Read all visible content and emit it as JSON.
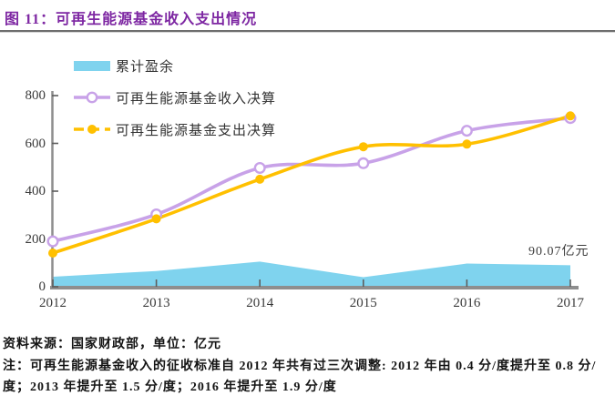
{
  "title": "图 11：可再生能源基金收入支出情况",
  "chart_data": {
    "type": "line",
    "subtype": "two smoothed lines with markers over a filled area series",
    "unit": "亿元",
    "categories": [
      "2012",
      "2013",
      "2014",
      "2015",
      "2016",
      "2017"
    ],
    "series": [
      {
        "name": "累计盈余",
        "type": "area",
        "color": "#7FD3EE",
        "values": [
          42,
          66,
          105,
          40,
          97,
          90.07
        ]
      },
      {
        "name": "可再生能源基金收入决算",
        "type": "line",
        "marker": "open-circle",
        "color": "#C8A2E8",
        "values": [
          190,
          303,
          497,
          517,
          653,
          706
        ]
      },
      {
        "name": "可再生能源基金支出决算",
        "type": "line",
        "marker": "filled-circle",
        "color": "#FFC000",
        "values": [
          141,
          284,
          450,
          586,
          597,
          715
        ]
      }
    ],
    "ylim": [
      0,
      800
    ],
    "yticks": [
      0,
      200,
      400,
      600,
      800
    ],
    "grid": false,
    "legend_position": "top-left inside plot",
    "annotation": {
      "text": "90.07亿元",
      "series": "累计盈余",
      "category": "2017"
    }
  },
  "footer": {
    "source": "资料来源：国家财政部，单位：亿元",
    "note": "注：可再生能源基金收入的征收标准自 2012 年共有过三次调整: 2012 年由 0.4 分/度提升至 0.8 分/度；2013 年提升至 1.5 分/度；2016 年提升至 1.9 分/度"
  },
  "colors": {
    "title": "#7D26A2",
    "axis": "#8E8E8E",
    "tick": "#5d5d5d",
    "text": "#333333"
  }
}
